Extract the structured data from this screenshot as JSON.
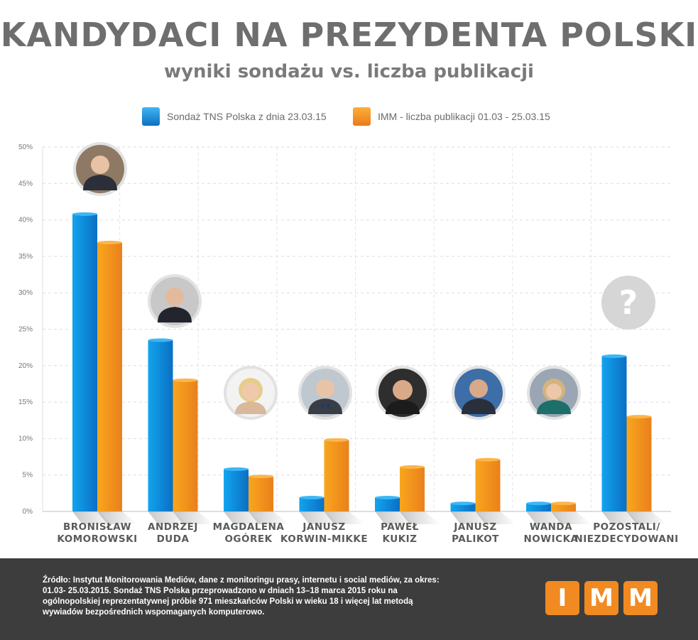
{
  "title": "KANDYDACI NA PREZYDENTA POLSKI",
  "subtitle": "wyniki sondażu vs. liczba publikacji",
  "legend": [
    {
      "label": "Sondaż TNS Polska z dnia 23.03.15",
      "color": "#1e9ee6"
    },
    {
      "label": "IMM - liczba publikacji 01.03 - 25.03.15",
      "color": "#f39a1f"
    }
  ],
  "chart_data": {
    "type": "bar",
    "categories": [
      [
        "BRONISŁAW",
        "KOMOROWSKI"
      ],
      [
        "ANDRZEJ",
        "DUDA"
      ],
      [
        "MAGDALENA",
        "OGÓREK"
      ],
      [
        "JANUSZ",
        "KORWIN-MIKKE"
      ],
      [
        "PAWEŁ",
        "KUKIZ"
      ],
      [
        "JANUSZ",
        "PALIKOT"
      ],
      [
        "WANDA",
        "NOWICKA"
      ],
      [
        "POZOSTALI/",
        "NIEZDECYDOWANI"
      ]
    ],
    "series": [
      {
        "name": "Sondaż TNS Polska z dnia 23.03.15",
        "color": "#1e9ee6",
        "values": [
          40.8,
          23.5,
          5.8,
          1.9,
          1.9,
          1.1,
          1.1,
          21.3
        ]
      },
      {
        "name": "IMM - liczba publikacji 01.03 - 25.03.15",
        "color": "#f39a1f",
        "values": [
          36.9,
          18.0,
          4.8,
          9.8,
          6.1,
          7.1,
          1.1,
          13.0
        ]
      }
    ],
    "yticks": [
      "0%",
      "5%",
      "10%",
      "15%",
      "20%",
      "25%",
      "30%",
      "35%",
      "40%",
      "45%",
      "50%"
    ],
    "ylim": [
      0,
      50
    ],
    "grid": true,
    "legend_position": "top-center",
    "unknown_marker": "?"
  },
  "footer": {
    "source": "Źródło: Instytut Monitorowania Mediów, dane z monitoringu prasy, internetu i social mediów, za okres: 01.03- 25.03.2015. Sondaż TNS Polska przeprowadzono w dniach 13–18 marca 2015 roku na ogólnopolskiej reprezentatywnej próbie 971 mieszkańców Polski w wieku 18 i więcej lat metodą wywiadów bezpośrednich wspomaganych komputerowo.",
    "logo_letters": [
      "I",
      "M",
      "M"
    ]
  }
}
